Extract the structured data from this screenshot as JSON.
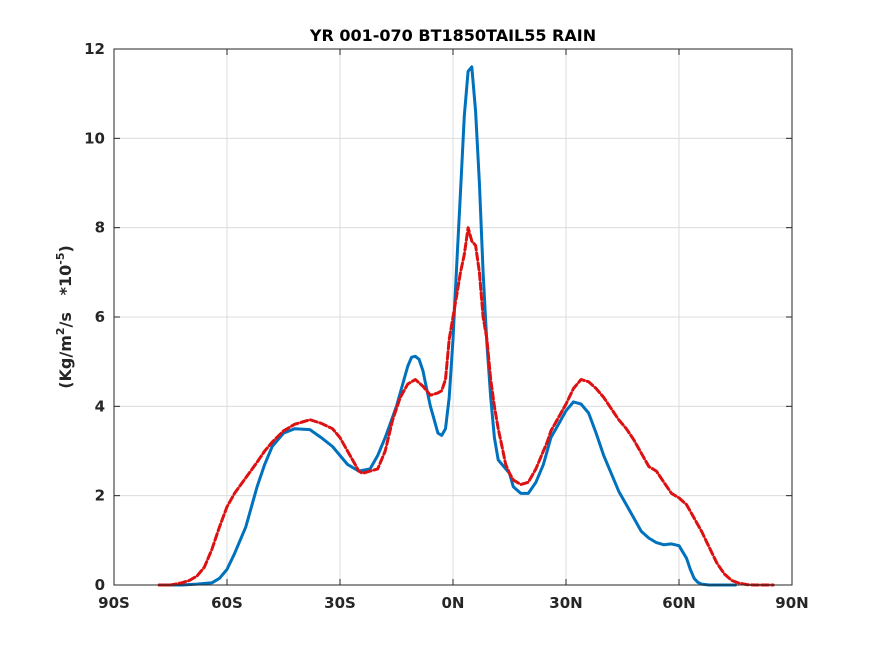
{
  "chart_data": {
    "type": "line",
    "title": "YR 001-070 BT1850TAIL55 RAIN",
    "xlabel": "",
    "ylabel_parts": [
      "(Kg/m",
      "2",
      "/s   *10",
      "-5",
      ")"
    ],
    "xlim": [
      -90,
      90
    ],
    "ylim": [
      0,
      12
    ],
    "xticks": [
      -90,
      -60,
      -30,
      0,
      30,
      60,
      90
    ],
    "xtick_labels": [
      "90S",
      "60S",
      "30S",
      "0N",
      "30N",
      "60N",
      "90N"
    ],
    "yticks": [
      0,
      2,
      4,
      6,
      8,
      10,
      12
    ],
    "ytick_labels": [
      "0",
      "2",
      "4",
      "6",
      "8",
      "10",
      "12"
    ],
    "grid": true,
    "series": [
      {
        "color": "#0072bd",
        "dash": "solid",
        "x": [
          -78,
          -72,
          -68,
          -64,
          -62,
          -60,
          -58,
          -55,
          -52,
          -50,
          -48,
          -45,
          -42,
          -38,
          -35,
          -32,
          -30,
          -28,
          -25,
          -22,
          -20,
          -18,
          -15,
          -13,
          -12,
          -11,
          -10,
          -9,
          -8,
          -7,
          -6,
          -5,
          -4,
          -3,
          -2,
          -1,
          0,
          1,
          2,
          3,
          4,
          5,
          6,
          7,
          8,
          9,
          10,
          11,
          12,
          13,
          14,
          15,
          16,
          18,
          20,
          22,
          24,
          25,
          26,
          28,
          30,
          32,
          34,
          36,
          38,
          40,
          42,
          44,
          46,
          48,
          50,
          52,
          54,
          56,
          58,
          60,
          62,
          63,
          64,
          65,
          66,
          68,
          70,
          72,
          75
        ],
        "y": [
          0,
          0,
          0.02,
          0.05,
          0.15,
          0.35,
          0.7,
          1.3,
          2.2,
          2.7,
          3.1,
          3.4,
          3.5,
          3.48,
          3.3,
          3.1,
          2.9,
          2.7,
          2.55,
          2.6,
          2.9,
          3.3,
          4.0,
          4.6,
          4.9,
          5.1,
          5.12,
          5.05,
          4.8,
          4.4,
          4.0,
          3.7,
          3.4,
          3.35,
          3.5,
          4.2,
          5.5,
          7.2,
          8.8,
          10.5,
          11.5,
          11.6,
          10.6,
          9.0,
          7.0,
          5.4,
          4.2,
          3.3,
          2.8,
          2.7,
          2.6,
          2.5,
          2.2,
          2.05,
          2.05,
          2.3,
          2.7,
          3.0,
          3.3,
          3.6,
          3.9,
          4.1,
          4.05,
          3.85,
          3.4,
          2.9,
          2.5,
          2.1,
          1.8,
          1.5,
          1.2,
          1.05,
          0.95,
          0.9,
          0.92,
          0.88,
          0.6,
          0.35,
          0.15,
          0.06,
          0.02,
          0,
          0,
          0,
          0
        ]
      },
      {
        "color": "#dd1111",
        "dash": "dashed",
        "x": [
          -78,
          -75,
          -72,
          -70,
          -68,
          -66,
          -64,
          -62,
          -60,
          -58,
          -55,
          -52,
          -50,
          -48,
          -45,
          -42,
          -40,
          -38,
          -35,
          -32,
          -30,
          -28,
          -26,
          -25,
          -24,
          -22,
          -20,
          -18,
          -16,
          -14,
          -12,
          -10,
          -8,
          -6,
          -4,
          -3,
          -2,
          -1,
          0,
          1,
          2,
          3,
          4,
          5,
          6,
          7,
          8,
          9,
          10,
          11,
          12,
          13,
          14,
          15,
          16,
          18,
          20,
          22,
          24,
          25,
          26,
          27,
          28,
          30,
          32,
          34,
          36,
          38,
          40,
          42,
          44,
          46,
          48,
          50,
          52,
          54,
          56,
          58,
          60,
          62,
          64,
          66,
          68,
          70,
          72,
          74,
          76,
          78,
          80,
          85
        ],
        "y": [
          0,
          0,
          0.05,
          0.1,
          0.2,
          0.4,
          0.8,
          1.3,
          1.75,
          2.05,
          2.4,
          2.75,
          3.0,
          3.2,
          3.45,
          3.6,
          3.65,
          3.7,
          3.62,
          3.5,
          3.3,
          3.0,
          2.7,
          2.55,
          2.5,
          2.55,
          2.6,
          3.0,
          3.7,
          4.2,
          4.5,
          4.6,
          4.45,
          4.25,
          4.3,
          4.35,
          4.6,
          5.5,
          6.0,
          6.5,
          7.0,
          7.4,
          8.0,
          7.7,
          7.6,
          7.0,
          6.0,
          5.5,
          4.6,
          4.0,
          3.5,
          3.1,
          2.7,
          2.5,
          2.35,
          2.25,
          2.3,
          2.6,
          3.0,
          3.2,
          3.45,
          3.6,
          3.75,
          4.05,
          4.4,
          4.6,
          4.55,
          4.4,
          4.2,
          3.95,
          3.7,
          3.5,
          3.25,
          2.95,
          2.65,
          2.55,
          2.3,
          2.05,
          1.95,
          1.8,
          1.5,
          1.2,
          0.85,
          0.5,
          0.25,
          0.1,
          0.04,
          0.01,
          0,
          0
        ]
      }
    ]
  }
}
